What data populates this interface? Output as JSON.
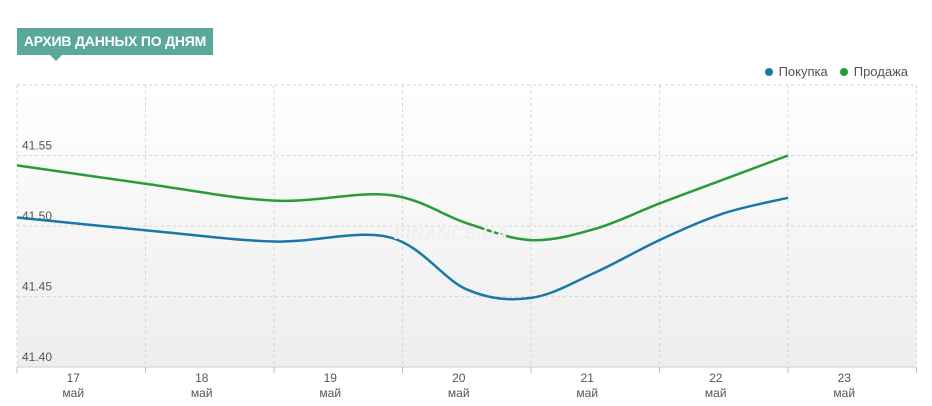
{
  "header": {
    "title": "АРХИВ ДАННЫХ ПО ДНЯМ"
  },
  "watermark": "FINANCE.UA",
  "chart_data": {
    "type": "line",
    "x": [
      17,
      18,
      19,
      20,
      21,
      22,
      23
    ],
    "x_labels": [
      {
        "day": "17",
        "month": "май"
      },
      {
        "day": "18",
        "month": "май"
      },
      {
        "day": "19",
        "month": "май"
      },
      {
        "day": "20",
        "month": "май"
      },
      {
        "day": "21",
        "month": "май"
      },
      {
        "day": "22",
        "month": "май"
      },
      {
        "day": "23",
        "month": "май"
      }
    ],
    "y_ticks": [
      "41.40",
      "41.45",
      "41.50",
      "41.55"
    ],
    "ylim": [
      41.4,
      41.6
    ],
    "xlim": [
      17,
      24
    ],
    "grid": true,
    "legend_position": "top-right",
    "series": [
      {
        "name": "Покупка",
        "color": "#1a78a8",
        "points": [
          [
            17,
            41.506
          ],
          [
            18,
            41.497
          ],
          [
            19,
            41.489
          ],
          [
            19.9,
            41.492
          ],
          [
            20.5,
            41.455
          ],
          [
            21,
            41.449
          ],
          [
            21.5,
            41.467
          ],
          [
            22,
            41.49
          ],
          [
            22.5,
            41.509
          ],
          [
            23,
            41.52
          ]
        ]
      },
      {
        "name": "Продажа",
        "color": "#2a9a3a",
        "points": [
          [
            17,
            41.543
          ],
          [
            18,
            41.53
          ],
          [
            19,
            41.518
          ],
          [
            19.9,
            41.522
          ],
          [
            20.5,
            41.502
          ],
          [
            21,
            41.49
          ],
          [
            21.5,
            41.498
          ],
          [
            22,
            41.516
          ],
          [
            22.5,
            41.533
          ],
          [
            23,
            41.55
          ]
        ]
      }
    ]
  }
}
